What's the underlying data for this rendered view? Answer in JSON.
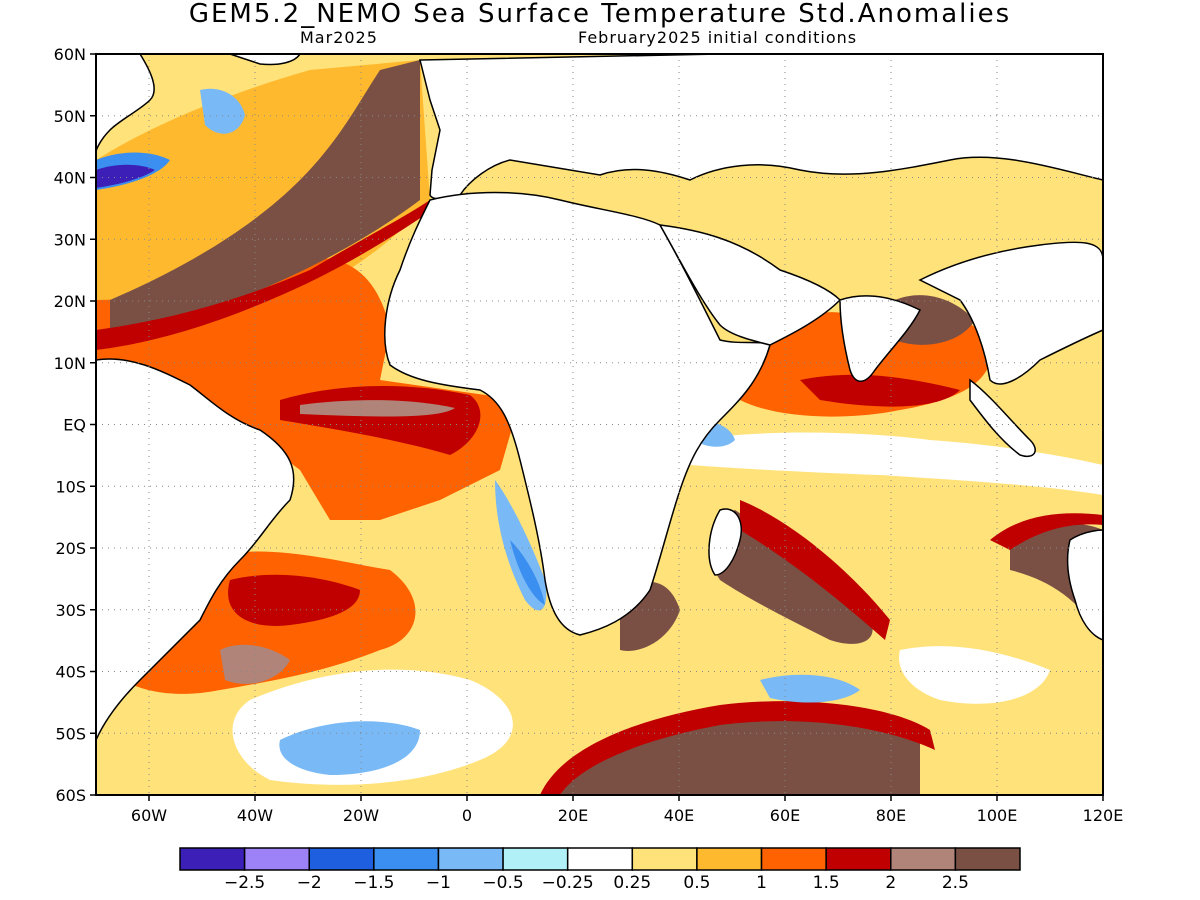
{
  "title": "GEM5.2_NEMO Sea Surface Temperature Std.Anomalies",
  "subtitle_left": "Mar2025",
  "subtitle_right": "February2025 initial conditions",
  "map": {
    "lon_range": [
      -70,
      120
    ],
    "lat_range": [
      -60,
      60
    ],
    "lat_ticks": [
      "60N",
      "50N",
      "40N",
      "30N",
      "20N",
      "10N",
      "EQ",
      "10S",
      "20S",
      "30S",
      "40S",
      "50S",
      "60S"
    ],
    "lon_ticks": [
      "60W",
      "40W",
      "20W",
      "0",
      "20E",
      "40E",
      "60E",
      "80E",
      "100E",
      "120E"
    ],
    "grid": "dotted",
    "land_color": "#ffffff"
  },
  "colorbar": {
    "colors": [
      "#3b1fb6",
      "#9c82f6",
      "#1e5fe0",
      "#3a8ff0",
      "#79b9f6",
      "#b0f0f6",
      "#ffffff",
      "#ffe27a",
      "#ffb92e",
      "#ff6200",
      "#c00000",
      "#b08478",
      "#7a5045"
    ],
    "labels": [
      "−2.5",
      "−2",
      "−1.5",
      "−1",
      "−0.5",
      "−0.25",
      "0.25",
      "0.5",
      "1",
      "1.5",
      "2",
      "2.5"
    ]
  }
}
